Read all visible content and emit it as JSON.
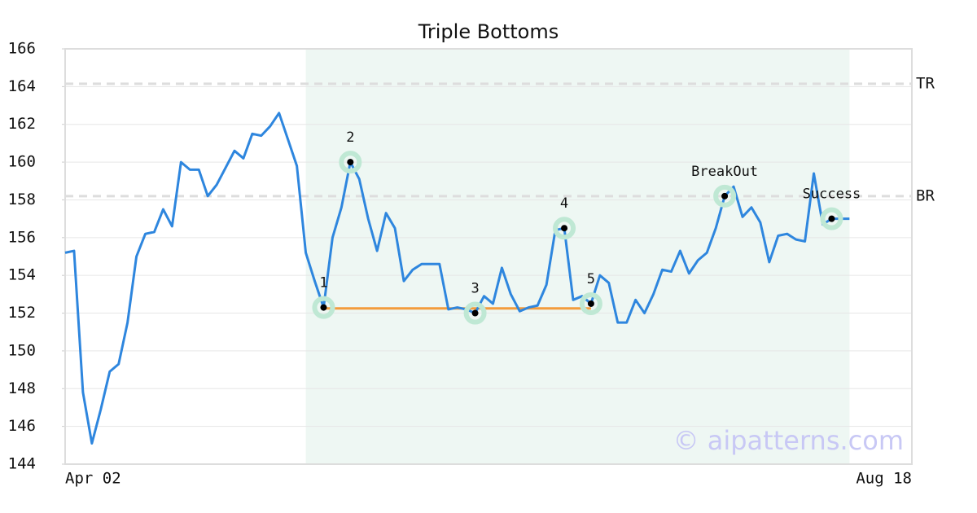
{
  "chart_data": {
    "type": "line",
    "title": "Triple Bottoms",
    "color": "#2e86de",
    "categories": [
      "Apr 02",
      null,
      null,
      null,
      null,
      null,
      null,
      null,
      null,
      null,
      null,
      null,
      null,
      null,
      null,
      null,
      null,
      null,
      null,
      null,
      null,
      null,
      null,
      null,
      null,
      null,
      null,
      null,
      null,
      null,
      null,
      null,
      null,
      null,
      null,
      null,
      null,
      null,
      null,
      null,
      null,
      null,
      null,
      null,
      null,
      null,
      null,
      null,
      null,
      null,
      null,
      null,
      null,
      null,
      null,
      null,
      null,
      null,
      null,
      null,
      null,
      null,
      null,
      null,
      null,
      null,
      null,
      null,
      null,
      null,
      null,
      null,
      null,
      null,
      null,
      null,
      null,
      null,
      null,
      null,
      null,
      null,
      null,
      null,
      null,
      null,
      null,
      null,
      null,
      null,
      null,
      null,
      null,
      null,
      null,
      "Aug 18"
    ],
    "values": [
      155.2,
      155.3,
      147.8,
      145.1,
      146.9,
      148.9,
      149.3,
      151.5,
      155.0,
      156.2,
      156.3,
      157.5,
      156.6,
      160.0,
      159.6,
      159.6,
      158.2,
      158.8,
      159.7,
      160.6,
      160.2,
      161.5,
      161.4,
      161.9,
      162.6,
      161.2,
      159.8,
      155.2,
      153.7,
      152.3,
      156.0,
      157.6,
      160.0,
      159.1,
      157.0,
      155.3,
      157.3,
      156.5,
      153.7,
      154.3,
      154.6,
      154.6,
      154.6,
      152.2,
      152.3,
      152.2,
      152.0,
      152.9,
      152.5,
      154.4,
      153.0,
      152.1,
      152.3,
      152.4,
      153.5,
      156.4,
      156.5,
      152.7,
      152.9,
      152.5,
      154.0,
      153.6,
      151.5,
      151.5,
      152.7,
      152.0,
      153.0,
      154.3,
      154.2,
      155.3,
      154.1,
      154.8,
      155.2,
      156.5,
      158.2,
      158.7,
      157.1,
      157.6,
      156.8,
      154.7,
      156.1,
      156.2,
      155.9,
      155.8,
      159.4,
      156.7,
      157.0,
      157.0,
      157.0,
      null,
      null,
      null,
      null,
      null,
      null,
      null
    ],
    "ylim": [
      144,
      166
    ],
    "yticks": [
      144,
      146,
      148,
      150,
      152,
      154,
      156,
      158,
      160,
      162,
      164,
      166
    ],
    "grid": true,
    "shaded_range": [
      27,
      88
    ],
    "support_line": {
      "x": [
        29,
        59
      ],
      "value": 152.25,
      "color": "#f39c3c"
    },
    "levels": [
      {
        "label": "TR",
        "value": 164.15
      },
      {
        "label": "BR",
        "value": 158.2
      }
    ],
    "markers": [
      {
        "label": "1",
        "x": 29,
        "value": 152.3
      },
      {
        "label": "2",
        "x": 32,
        "value": 160.0
      },
      {
        "label": "3",
        "x": 46,
        "value": 152.0
      },
      {
        "label": "4",
        "x": 56,
        "value": 156.5
      },
      {
        "label": "5",
        "x": 59,
        "value": 152.5
      },
      {
        "label": "BreakOut",
        "x": 74,
        "value": 158.2
      },
      {
        "label": "Success",
        "x": 86,
        "value": 157.0
      }
    ],
    "watermark": "© aipatterns.com"
  }
}
